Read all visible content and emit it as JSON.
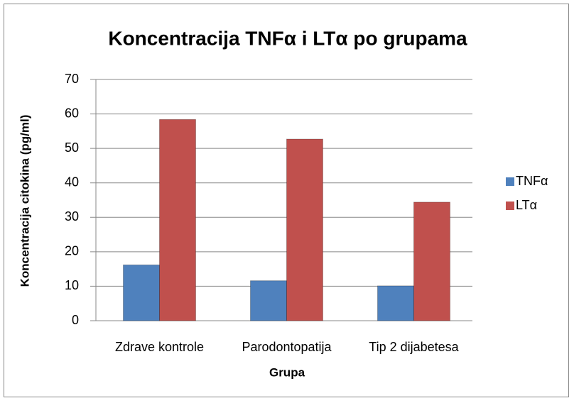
{
  "chart_data": {
    "type": "bar",
    "title": "Koncentracija TNFα i LTα po grupama",
    "x_label": "Grupa",
    "y_label": "Koncentracija citokina (pg/ml)",
    "categories": [
      "Zdrave kontrole",
      "Parodontopatija",
      "Tip 2 dijabetesa"
    ],
    "series": [
      {
        "name": "TNFα",
        "color": "#4f81bd",
        "values": [
          16.2,
          11.6,
          10.1
        ]
      },
      {
        "name": "LTα",
        "color": "#c0504d",
        "values": [
          58.4,
          52.7,
          34.4
        ]
      }
    ],
    "ylim": [
      0,
      70
    ],
    "yticks": [
      0,
      10,
      20,
      30,
      40,
      50,
      60,
      70
    ],
    "grid": true,
    "legend": "right"
  }
}
